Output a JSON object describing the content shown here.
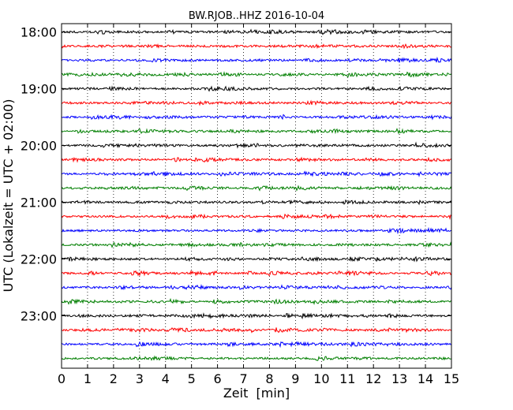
{
  "chart_data": {
    "type": "line",
    "title": "BW.RJOB..HHZ 2016-10-04",
    "xlabel": "Zeit  [min]",
    "ylabel": "UTC (Lokalzeit = UTC + 02:00)",
    "xlim": [
      0,
      15
    ],
    "x_ticks": [
      "0",
      "1",
      "2",
      "3",
      "4",
      "5",
      "6",
      "7",
      "8",
      "9",
      "10",
      "11",
      "12",
      "13",
      "14",
      "15"
    ],
    "y_ticks": [
      "18:00",
      "19:00",
      "20:00",
      "21:00",
      "22:00",
      "23:00"
    ],
    "rows_per_hour": 4,
    "minutes_per_row": 15,
    "row_count": 24,
    "grid": "vertical-dotted",
    "trace_colors": [
      "#000000",
      "#ff0000",
      "#0000ff",
      "#007f00"
    ]
  }
}
